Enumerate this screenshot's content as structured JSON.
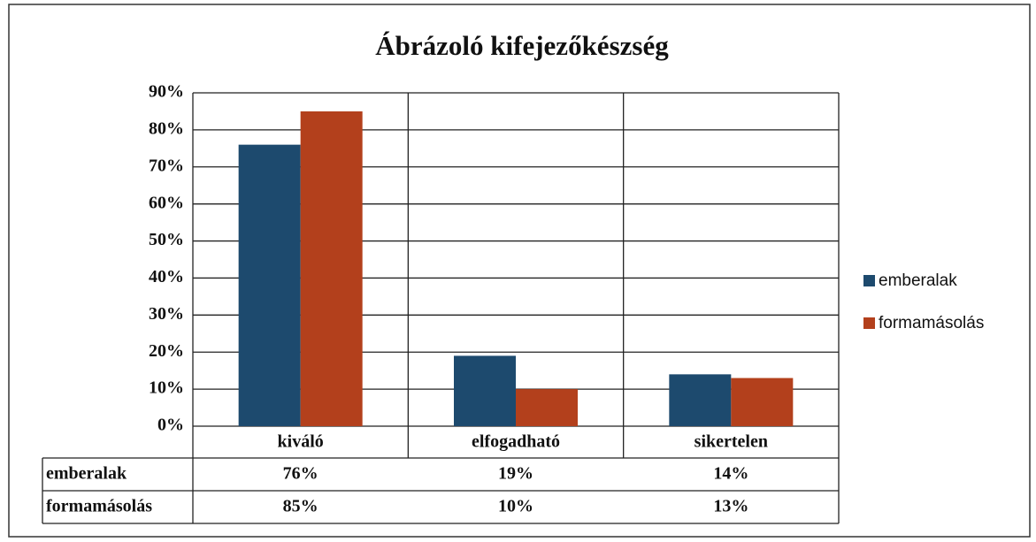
{
  "chart_data": {
    "type": "bar",
    "title": "Ábrázoló kifejezőkészség",
    "categories": [
      "kiváló",
      "elfogadható",
      "sikertelen"
    ],
    "series": [
      {
        "name": "emberalak",
        "color": "#1d4a6e",
        "values": [
          76,
          19,
          14
        ],
        "value_labels": [
          "76%",
          "19%",
          "14%"
        ]
      },
      {
        "name": "formamásolás",
        "color": "#b3401c",
        "values": [
          85,
          10,
          13
        ],
        "value_labels": [
          "85%",
          "10%",
          "13%"
        ]
      }
    ],
    "ylim": [
      0,
      90
    ],
    "yticks": [
      {
        "value": 0,
        "label": "0%"
      },
      {
        "value": 10,
        "label": "10%"
      },
      {
        "value": 20,
        "label": "20%"
      },
      {
        "value": 30,
        "label": "30%"
      },
      {
        "value": 40,
        "label": "40%"
      },
      {
        "value": 50,
        "label": "50%"
      },
      {
        "value": 60,
        "label": "60%"
      },
      {
        "value": 70,
        "label": "70%"
      },
      {
        "value": 80,
        "label": "80%"
      },
      {
        "value": 90,
        "label": "90%"
      }
    ],
    "grid": true,
    "legend": "right",
    "data_table": true
  }
}
